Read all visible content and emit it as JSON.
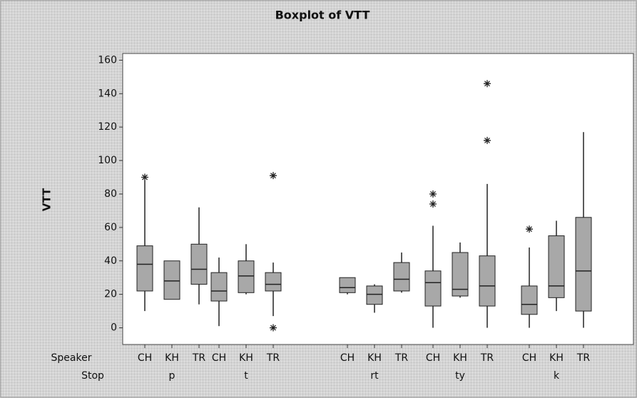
{
  "chart_data": {
    "type": "boxplot",
    "title": "Boxplot of VTT",
    "y_label": "VTT",
    "row_labels": [
      "Speaker",
      "Stop"
    ],
    "ylim": [
      -10,
      164
    ],
    "yticks": [
      0,
      20,
      40,
      60,
      80,
      100,
      120,
      140,
      160
    ],
    "color": "#a8a8a8",
    "groups": [
      {
        "stop": "p",
        "boxes": [
          {
            "speaker": "CH",
            "min": 10,
            "q1": 22,
            "median": 38,
            "q3": 49,
            "max": 88,
            "outliers": [
              90
            ]
          },
          {
            "speaker": "KH",
            "min": 17,
            "q1": 17,
            "median": 28,
            "q3": 40,
            "max": 40,
            "outliers": []
          },
          {
            "speaker": "TR",
            "min": 14,
            "q1": 26,
            "median": 35,
            "q3": 50,
            "max": 72,
            "outliers": []
          }
        ]
      },
      {
        "stop": "t",
        "boxes": [
          {
            "speaker": "CH",
            "min": 1,
            "q1": 16,
            "median": 22,
            "q3": 33,
            "max": 42,
            "outliers": []
          },
          {
            "speaker": "KH",
            "min": 20,
            "q1": 21,
            "median": 31,
            "q3": 40,
            "max": 50,
            "outliers": []
          },
          {
            "speaker": "TR",
            "min": 7,
            "q1": 22,
            "median": 26,
            "q3": 33,
            "max": 39,
            "outliers": [
              0,
              91
            ]
          }
        ]
      },
      {
        "stop": "rt",
        "boxes": [
          {
            "speaker": "CH",
            "min": 20,
            "q1": 21,
            "median": 24,
            "q3": 30,
            "max": 30,
            "outliers": []
          },
          {
            "speaker": "KH",
            "min": 9,
            "q1": 14,
            "median": 20,
            "q3": 25,
            "max": 26,
            "outliers": []
          },
          {
            "speaker": "TR",
            "min": 21,
            "q1": 22,
            "median": 29,
            "q3": 39,
            "max": 45,
            "outliers": []
          }
        ]
      },
      {
        "stop": "ty",
        "boxes": [
          {
            "speaker": "CH",
            "min": 0,
            "q1": 13,
            "median": 27,
            "q3": 34,
            "max": 61,
            "outliers": [
              74,
              80
            ]
          },
          {
            "speaker": "KH",
            "min": 18,
            "q1": 19,
            "median": 23,
            "q3": 45,
            "max": 51,
            "outliers": []
          },
          {
            "speaker": "TR",
            "min": 0,
            "q1": 13,
            "median": 25,
            "q3": 43,
            "max": 86,
            "outliers": [
              112,
              146
            ]
          }
        ]
      },
      {
        "stop": "k",
        "boxes": [
          {
            "speaker": "CH",
            "min": 0,
            "q1": 8,
            "median": 14,
            "q3": 25,
            "max": 48,
            "outliers": [
              59
            ]
          },
          {
            "speaker": "KH",
            "min": 10,
            "q1": 18,
            "median": 25,
            "q3": 55,
            "max": 64,
            "outliers": []
          },
          {
            "speaker": "TR",
            "min": 0,
            "q1": 10,
            "median": 34,
            "q3": 66,
            "max": 117,
            "outliers": []
          }
        ]
      }
    ]
  }
}
